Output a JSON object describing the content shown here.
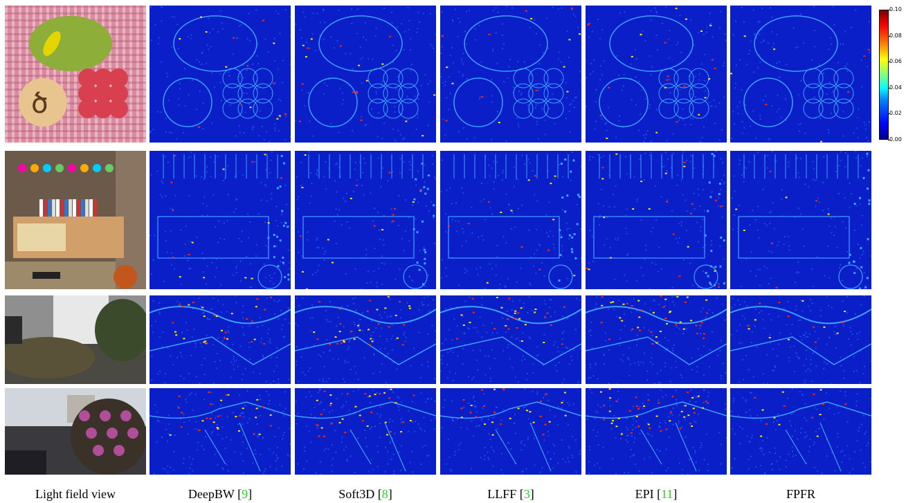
{
  "figure": {
    "columns": [
      {
        "id": "lfv",
        "label": "Light field view",
        "ref": ""
      },
      {
        "id": "deepbw",
        "label": "DeepBW [",
        "ref": "9"
      },
      {
        "id": "soft3d",
        "label": "Soft3D [",
        "ref": "8"
      },
      {
        "id": "llff",
        "label": "LLFF [",
        "ref": "3"
      },
      {
        "id": "epi",
        "label": "EPI [",
        "ref": "11"
      },
      {
        "id": "fpfr",
        "label": "FPFR",
        "ref": ""
      }
    ],
    "rows": [
      "scene-1",
      "scene-2",
      "scene-3",
      "scene-4"
    ],
    "colorbar": {
      "ticks": [
        "0.00",
        "0.02",
        "0.04",
        "0.06",
        "0.08",
        "0.10"
      ],
      "colors": [
        "#00008f",
        "#0000ff",
        "#00ffff",
        "#ffff00",
        "#ff0000",
        "#800000"
      ]
    },
    "colors": {
      "error_bg": "#0a1fc8",
      "error_edge": "#3fa0ff",
      "error_hot": "#ff2a00",
      "error_warm": "#ffe600"
    }
  }
}
